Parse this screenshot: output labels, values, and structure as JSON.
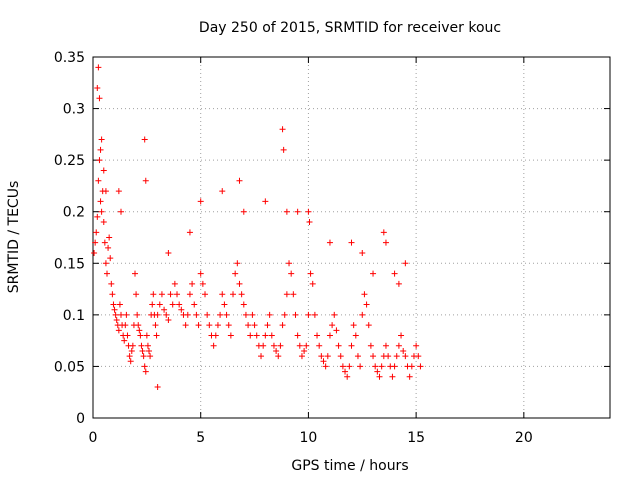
{
  "chart_data": {
    "type": "scatter",
    "title": "Day 250 of 2015, SRMTID for receiver kouc",
    "xlabel": "GPS time / hours",
    "ylabel": "SRMTID / TECUs",
    "xlim": [
      0,
      24
    ],
    "ylim": [
      0,
      0.35
    ],
    "grid": true,
    "x_ticks": [
      0,
      5,
      10,
      15,
      20
    ],
    "y_ticks": [
      0,
      0.05,
      0.1,
      0.15,
      0.2,
      0.25,
      0.3,
      0.35
    ],
    "x_tick_labels": [
      "0",
      "5",
      "10",
      "15",
      "20"
    ],
    "y_tick_labels": [
      "0",
      "0.05",
      "0.1",
      "0.15",
      "0.2",
      "0.25",
      "0.3",
      "0.35"
    ],
    "marker": "+",
    "series_color": "#ff0000",
    "series": [
      {
        "name": "SRMTID",
        "x": [
          0.05,
          0.1,
          0.15,
          0.2,
          0.25,
          0.3,
          0.35,
          0.4,
          0.45,
          0.5,
          0.55,
          0.6,
          0.65,
          0.7,
          0.75,
          0.8,
          0.85,
          0.9,
          0.95,
          1.0,
          1.05,
          1.1,
          1.15,
          1.2,
          1.25,
          1.3,
          1.35,
          1.4,
          1.45,
          1.5,
          1.55,
          1.6,
          1.65,
          1.7,
          1.75,
          1.8,
          1.85,
          1.9,
          1.95,
          2.0,
          2.05,
          2.1,
          2.15,
          2.2,
          2.25,
          2.3,
          2.35,
          2.4,
          2.45,
          2.5,
          2.55,
          2.6,
          2.65,
          2.7,
          2.75,
          2.8,
          2.85,
          2.9,
          2.95,
          3.0,
          3.1,
          3.2,
          3.3,
          3.4,
          3.5,
          3.6,
          3.7,
          3.8,
          3.9,
          4.0,
          4.1,
          4.2,
          4.3,
          4.4,
          4.5,
          4.6,
          4.7,
          4.8,
          4.9,
          5.0,
          5.1,
          5.2,
          5.3,
          5.4,
          5.5,
          5.6,
          5.7,
          5.8,
          5.9,
          6.0,
          6.1,
          6.2,
          6.3,
          6.4,
          6.5,
          6.6,
          6.7,
          6.8,
          6.9,
          7.0,
          7.1,
          7.2,
          7.3,
          7.4,
          7.5,
          7.6,
          7.7,
          7.8,
          7.9,
          8.0,
          8.1,
          8.2,
          8.3,
          8.4,
          8.5,
          8.6,
          8.7,
          8.8,
          8.9,
          9.0,
          9.1,
          9.2,
          9.3,
          9.4,
          9.5,
          9.6,
          9.7,
          9.8,
          9.9,
          10.0,
          10.1,
          10.2,
          10.3,
          10.4,
          10.5,
          10.6,
          10.7,
          10.8,
          10.9,
          11.0,
          11.1,
          11.2,
          11.3,
          11.4,
          11.5,
          11.6,
          11.7,
          11.8,
          11.9,
          12.0,
          12.1,
          12.2,
          12.3,
          12.4,
          12.5,
          12.6,
          12.7,
          12.8,
          12.9,
          13.0,
          13.1,
          13.2,
          13.3,
          13.4,
          13.5,
          13.6,
          13.7,
          13.8,
          13.9,
          14.0,
          14.1,
          14.2,
          14.3,
          14.4,
          14.5,
          14.6,
          14.7,
          14.8,
          14.9,
          15.0,
          15.1,
          15.2,
          0.2,
          0.25,
          0.3,
          0.35,
          0.4,
          0.5,
          0.6,
          2.4,
          2.45,
          6.8,
          8.8,
          8.85,
          9.0,
          10.0,
          10.05,
          13.5,
          13.6,
          14.5,
          14.0,
          12.0,
          1.2,
          1.3,
          3.5,
          4.5,
          5.0,
          6.0,
          7.0,
          8.0,
          11.0,
          12.5,
          13.0,
          14.2,
          3.0,
          9.5
        ],
        "y": [
          0.16,
          0.17,
          0.18,
          0.195,
          0.23,
          0.25,
          0.21,
          0.2,
          0.22,
          0.19,
          0.17,
          0.15,
          0.14,
          0.165,
          0.175,
          0.155,
          0.13,
          0.12,
          0.11,
          0.105,
          0.1,
          0.095,
          0.09,
          0.085,
          0.11,
          0.1,
          0.09,
          0.08,
          0.075,
          0.09,
          0.1,
          0.08,
          0.07,
          0.06,
          0.055,
          0.065,
          0.07,
          0.09,
          0.14,
          0.12,
          0.1,
          0.09,
          0.085,
          0.08,
          0.07,
          0.065,
          0.06,
          0.05,
          0.045,
          0.08,
          0.07,
          0.065,
          0.06,
          0.1,
          0.11,
          0.12,
          0.1,
          0.09,
          0.08,
          0.1,
          0.11,
          0.12,
          0.105,
          0.1,
          0.095,
          0.12,
          0.11,
          0.13,
          0.12,
          0.11,
          0.105,
          0.1,
          0.09,
          0.1,
          0.12,
          0.13,
          0.11,
          0.1,
          0.09,
          0.14,
          0.13,
          0.12,
          0.1,
          0.09,
          0.08,
          0.07,
          0.08,
          0.09,
          0.1,
          0.12,
          0.11,
          0.1,
          0.09,
          0.08,
          0.12,
          0.14,
          0.15,
          0.13,
          0.12,
          0.11,
          0.1,
          0.09,
          0.08,
          0.1,
          0.09,
          0.08,
          0.07,
          0.06,
          0.07,
          0.08,
          0.09,
          0.1,
          0.08,
          0.07,
          0.065,
          0.06,
          0.07,
          0.09,
          0.1,
          0.12,
          0.15,
          0.14,
          0.12,
          0.1,
          0.08,
          0.07,
          0.06,
          0.065,
          0.07,
          0.1,
          0.14,
          0.13,
          0.1,
          0.08,
          0.07,
          0.06,
          0.055,
          0.05,
          0.06,
          0.08,
          0.09,
          0.1,
          0.085,
          0.07,
          0.06,
          0.05,
          0.045,
          0.04,
          0.05,
          0.07,
          0.09,
          0.08,
          0.06,
          0.05,
          0.1,
          0.12,
          0.11,
          0.09,
          0.07,
          0.06,
          0.05,
          0.045,
          0.04,
          0.05,
          0.06,
          0.07,
          0.06,
          0.05,
          0.04,
          0.05,
          0.06,
          0.07,
          0.08,
          0.065,
          0.06,
          0.05,
          0.04,
          0.05,
          0.06,
          0.07,
          0.06,
          0.05,
          0.32,
          0.34,
          0.31,
          0.26,
          0.27,
          0.24,
          0.22,
          0.27,
          0.23,
          0.23,
          0.28,
          0.26,
          0.2,
          0.2,
          0.19,
          0.18,
          0.17,
          0.15,
          0.14,
          0.17,
          0.22,
          0.2,
          0.16,
          0.18,
          0.21,
          0.22,
          0.2,
          0.21,
          0.17,
          0.16,
          0.14,
          0.13,
          0.03,
          0.2
        ]
      }
    ]
  }
}
